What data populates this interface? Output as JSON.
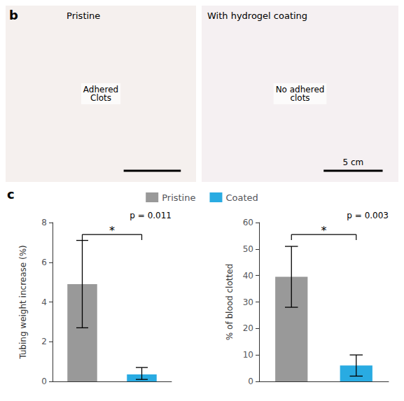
{
  "panel_labels": [
    "b",
    "c"
  ],
  "photos": [
    {
      "title": "Pristine",
      "annotation": "Adhered\nClots",
      "color": "#f5f0ee"
    },
    {
      "title": "With hydrogel coating",
      "annotation": "No adhered\nclots",
      "scale_bar": "5 cm",
      "color": "#f5f0f2"
    }
  ],
  "chart_data": [
    {
      "type": "bar",
      "ylabel": "Tubing weight increase (%)",
      "ylim": [
        0,
        8
      ],
      "yticks": [
        0,
        2,
        4,
        6,
        8
      ],
      "grid": false,
      "tick_labels": "y",
      "legend": "top",
      "series": [
        {
          "name": "Pristine",
          "color": "#999999",
          "values": [
            4.9
          ],
          "error_low": [
            2.2
          ],
          "error_high": [
            2.2
          ]
        },
        {
          "name": "Coated",
          "color": "#29ABE2",
          "values": [
            0.35
          ],
          "error_low": [
            0.25
          ],
          "error_high": [
            0.35
          ]
        }
      ],
      "bracket": {
        "y": 7.4,
        "label": "*"
      },
      "annotations": [
        "p = 0.011"
      ]
    },
    {
      "type": "bar",
      "ylabel": "% of blood clotted",
      "ylim": [
        0,
        60
      ],
      "yticks": [
        0,
        10,
        20,
        30,
        40,
        50,
        60
      ],
      "grid": false,
      "tick_labels": "y",
      "legend": "top",
      "series": [
        {
          "name": "Pristine",
          "color": "#999999",
          "values": [
            39.5
          ],
          "error_low": [
            11.5
          ],
          "error_high": [
            11.5
          ]
        },
        {
          "name": "Coated",
          "color": "#29ABE2",
          "values": [
            6.0
          ],
          "error_low": [
            4.0
          ],
          "error_high": [
            4.0
          ]
        }
      ],
      "bracket": {
        "y": 55.5,
        "label": "*"
      },
      "annotations": [
        "p = 0.003"
      ]
    }
  ]
}
